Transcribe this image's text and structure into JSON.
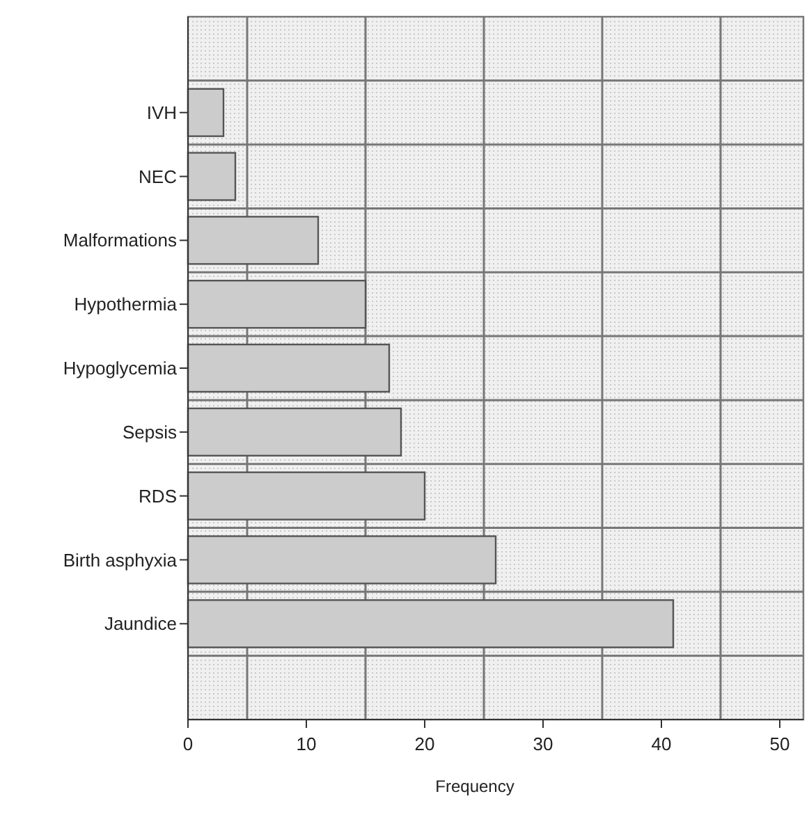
{
  "chart_data": {
    "type": "bar",
    "orientation": "horizontal",
    "xlabel": "Frequency",
    "categories": [
      "IVH",
      "NEC",
      "Malformations",
      "Hypothermia",
      "Hypoglycemia",
      "Sepsis",
      "RDS",
      "Birth asphyxia",
      "Jaundice"
    ],
    "values": [
      3,
      4,
      11,
      15,
      17,
      18,
      20,
      26,
      41
    ],
    "color": "#cccccc",
    "xlim": [
      0,
      52
    ],
    "xticks": [
      0,
      {
        "value": 5,
        "label": null
      },
      10,
      {
        "value": 15,
        "label": null
      },
      20,
      {
        "value": 25,
        "label": null
      },
      30,
      {
        "value": 35,
        "label": null
      },
      40,
      {
        "value": 45,
        "label": null
      },
      50
    ],
    "grid": true
  }
}
